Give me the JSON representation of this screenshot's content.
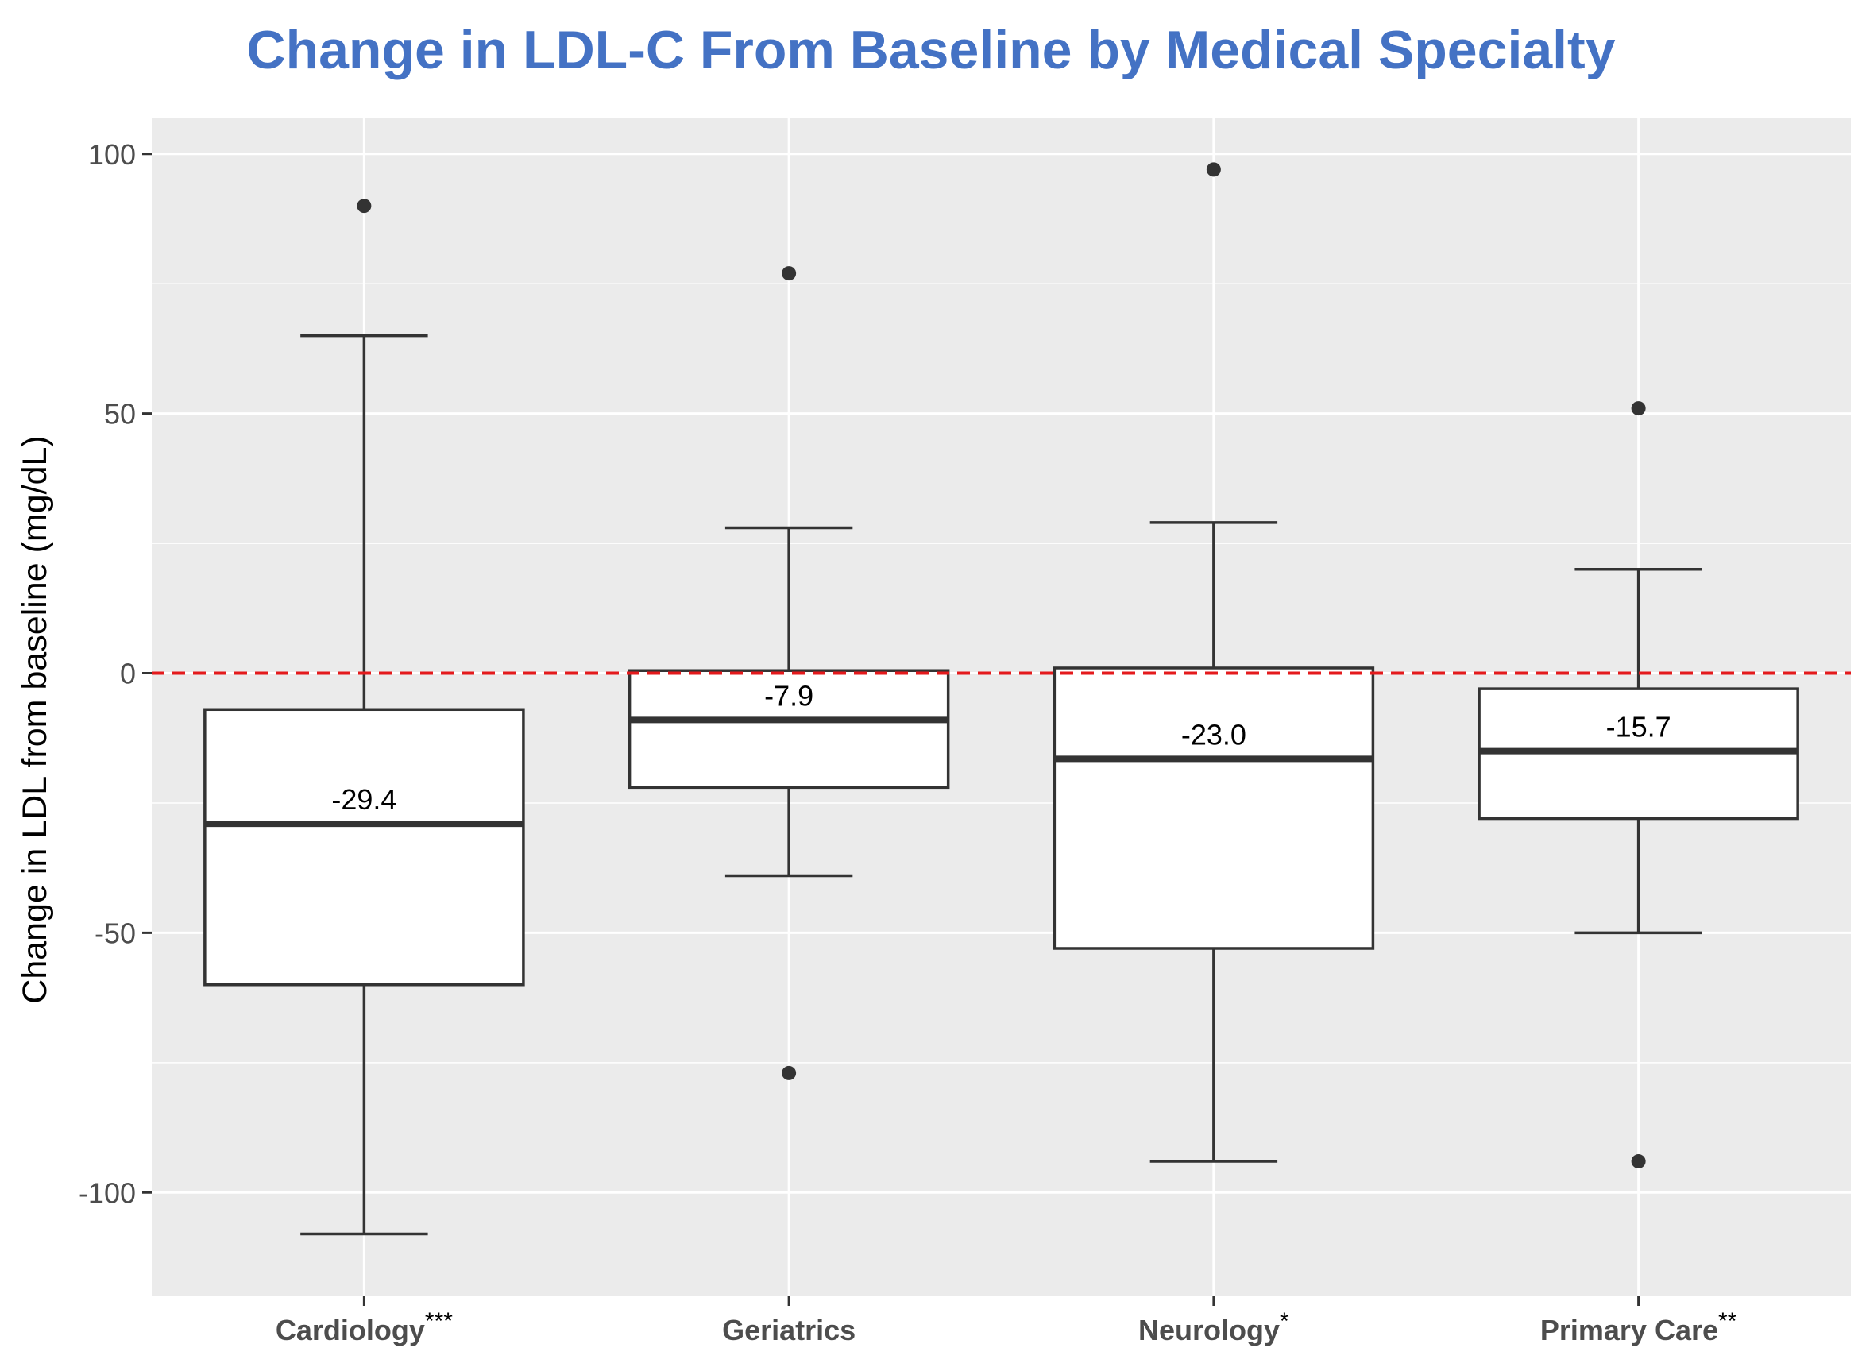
{
  "chart_data": {
    "type": "box",
    "title": "Change in LDL-C From Baseline by Medical Specialty",
    "xlabel": "",
    "ylabel": "Change in LDL from baseline (mg/dL)",
    "ylim": [
      -120,
      107
    ],
    "yticks": [
      100,
      50,
      0,
      -50,
      -100
    ],
    "grid": true,
    "reference_line": {
      "y": 0,
      "style": "dashed",
      "color": "#e41a1c"
    },
    "categories": [
      "Cardiology",
      "Geriatrics",
      "Neurology",
      "Primary Care"
    ],
    "significance": [
      "***",
      "",
      "*",
      "**"
    ],
    "boxes": [
      {
        "category": "Cardiology",
        "whisker_low": -108,
        "q1": -60,
        "median": -29,
        "q3": -7,
        "whisker_high": 65,
        "outliers": [
          90
        ],
        "label": "-29.4"
      },
      {
        "category": "Geriatrics",
        "whisker_low": -39,
        "q1": -22,
        "median": -9,
        "q3": 0.5,
        "whisker_high": 28,
        "outliers": [
          77,
          -77
        ],
        "label": "-7.9"
      },
      {
        "category": "Neurology",
        "whisker_low": -94,
        "q1": -53,
        "median": -16.5,
        "q3": 1,
        "whisker_high": 29,
        "outliers": [
          97
        ],
        "label": "-23.0"
      },
      {
        "category": "Primary Care",
        "whisker_low": -50,
        "q1": -28,
        "median": -15,
        "q3": -3,
        "whisker_high": 20,
        "outliers": [
          51,
          -94
        ],
        "label": "-15.7"
      }
    ]
  },
  "colors": {
    "title": "#4472c4",
    "panel": "#ebebeb",
    "grid": "#ffffff",
    "box_fill": "#ffffff",
    "box_stroke": "#333333",
    "refline": "#e41a1c",
    "tick_text": "#4d4d4d",
    "category_text": "#4d4d4d"
  }
}
